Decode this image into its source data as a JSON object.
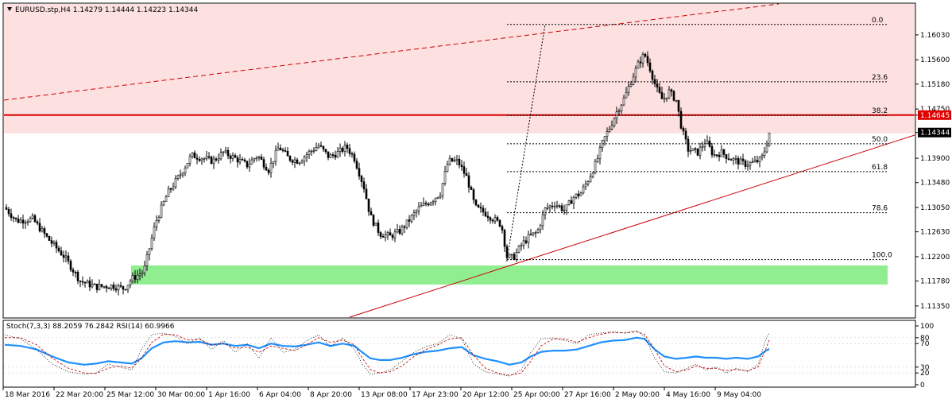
{
  "window": {
    "symbol_line": "EURUSD.stp,H4  1.14279 1.14444 1.14223 1.14344",
    "menu_icon": "triangle-down-icon"
  },
  "colors": {
    "background": "#ffffff",
    "resistance_zone": "#fde0e0",
    "support_zone": "#90ee90",
    "horizontal_line": "#e00000",
    "trend_line": "#cc0000",
    "candle": "#000000",
    "stoch_main": "#0b0b0b",
    "stoch_signal": "#c00000",
    "rsi": "#1e90ff"
  },
  "price_axis": {
    "labels": [
      "1.16030",
      "1.15600",
      "1.15180",
      "1.14750",
      "1.14645",
      "1.14344",
      "1.13900",
      "1.13480",
      "1.13050",
      "1.12630",
      "1.12200",
      "1.11780",
      "1.11350"
    ],
    "range": [
      1.1117,
      1.1655
    ],
    "horizontal_level": "1.14645",
    "current_price": "1.14344"
  },
  "time_axis": {
    "labels": [
      "18 Mar 2016",
      "22 Mar 20:00",
      "25 Mar 12:00",
      "30 Mar 00:00",
      "1 Apr 16:00",
      "6 Apr 04:00",
      "8 Apr 20:00",
      "13 Apr 08:00",
      "17 Apr 23:00",
      "20 Apr 12:00",
      "25 Apr 00:00",
      "27 Apr 16:00",
      "2 May 00:00",
      "4 May 16:00",
      "9 May 04:00"
    ]
  },
  "fibonacci": {
    "levels": [
      {
        "label": "0.0",
        "price": 1.1621
      },
      {
        "label": "23.6",
        "price": 1.1522
      },
      {
        "label": "38.2",
        "price": 1.1464
      },
      {
        "label": "50.0",
        "price": 1.1415
      },
      {
        "label": "61.8",
        "price": 1.1367
      },
      {
        "label": "78.6",
        "price": 1.1296
      },
      {
        "label": "100.0",
        "price": 1.1215
      }
    ]
  },
  "indicator": {
    "label": "Stoch(7,3,3) 88.2059 76.2842  RSI(14) 60.9966",
    "scale_labels": [
      "100",
      "80",
      "70",
      "30",
      "20",
      "0"
    ]
  },
  "chart_data": {
    "type": "candlestick",
    "title": "EURUSD.stp,H4  1.14279 1.14444 1.14223 1.14344",
    "ylim": [
      1.1117,
      1.1655
    ],
    "path": [
      [
        0,
        1.1305
      ],
      [
        15,
        1.1282
      ],
      [
        35,
        1.1285
      ],
      [
        55,
        1.125
      ],
      [
        75,
        1.122
      ],
      [
        95,
        1.1178
      ],
      [
        115,
        1.1168
      ],
      [
        135,
        1.117
      ],
      [
        150,
        1.1165
      ],
      [
        160,
        1.1182
      ],
      [
        175,
        1.1195
      ],
      [
        190,
        1.128
      ],
      [
        205,
        1.133
      ],
      [
        220,
        1.136
      ],
      [
        235,
        1.1395
      ],
      [
        250,
        1.139
      ],
      [
        262,
        1.1385
      ],
      [
        275,
        1.14
      ],
      [
        290,
        1.139
      ],
      [
        305,
        1.1378
      ],
      [
        318,
        1.1395
      ],
      [
        332,
        1.137
      ],
      [
        345,
        1.141
      ],
      [
        357,
        1.139
      ],
      [
        370,
        1.1385
      ],
      [
        383,
        1.14
      ],
      [
        395,
        1.1412
      ],
      [
        408,
        1.1392
      ],
      [
        420,
        1.14
      ],
      [
        430,
        1.141
      ],
      [
        440,
        1.139
      ],
      [
        452,
        1.134
      ],
      [
        460,
        1.129
      ],
      [
        472,
        1.126
      ],
      [
        485,
        1.1255
      ],
      [
        498,
        1.1265
      ],
      [
        510,
        1.1285
      ],
      [
        522,
        1.1305
      ],
      [
        535,
        1.1315
      ],
      [
        548,
        1.133
      ],
      [
        558,
        1.1385
      ],
      [
        570,
        1.1385
      ],
      [
        582,
        1.1355
      ],
      [
        592,
        1.1305
      ],
      [
        605,
        1.1295
      ],
      [
        615,
        1.1285
      ],
      [
        625,
        1.1275
      ],
      [
        632,
        1.122
      ],
      [
        640,
        1.1218
      ],
      [
        650,
        1.124
      ],
      [
        660,
        1.1255
      ],
      [
        670,
        1.1262
      ],
      [
        680,
        1.1302
      ],
      [
        692,
        1.1312
      ],
      [
        705,
        1.13
      ],
      [
        715,
        1.1322
      ],
      [
        725,
        1.133
      ],
      [
        735,
        1.1355
      ],
      [
        745,
        1.1385
      ],
      [
        753,
        1.142
      ],
      [
        762,
        1.1445
      ],
      [
        770,
        1.147
      ],
      [
        780,
        1.1495
      ],
      [
        790,
        1.153
      ],
      [
        798,
        1.1555
      ],
      [
        805,
        1.157
      ],
      [
        812,
        1.1545
      ],
      [
        820,
        1.151
      ],
      [
        828,
        1.149
      ],
      [
        836,
        1.1505
      ],
      [
        845,
        1.149
      ],
      [
        852,
        1.144
      ],
      [
        860,
        1.1405
      ],
      [
        872,
        1.14
      ],
      [
        882,
        1.142
      ],
      [
        892,
        1.1395
      ],
      [
        902,
        1.14
      ],
      [
        912,
        1.139
      ],
      [
        922,
        1.1385
      ],
      [
        932,
        1.138
      ],
      [
        942,
        1.1382
      ],
      [
        952,
        1.1388
      ],
      [
        958,
        1.141
      ],
      [
        962,
        1.1434
      ]
    ],
    "stoch_main": [
      [
        0,
        85
      ],
      [
        20,
        78
      ],
      [
        40,
        60
      ],
      [
        60,
        35
      ],
      [
        80,
        22
      ],
      [
        100,
        18
      ],
      [
        115,
        20
      ],
      [
        130,
        35
      ],
      [
        145,
        30
      ],
      [
        160,
        25
      ],
      [
        172,
        60
      ],
      [
        185,
        85
      ],
      [
        200,
        88
      ],
      [
        215,
        82
      ],
      [
        230,
        70
      ],
      [
        245,
        80
      ],
      [
        260,
        60
      ],
      [
        275,
        75
      ],
      [
        290,
        55
      ],
      [
        305,
        70
      ],
      [
        320,
        45
      ],
      [
        335,
        80
      ],
      [
        350,
        55
      ],
      [
        365,
        60
      ],
      [
        380,
        75
      ],
      [
        395,
        85
      ],
      [
        410,
        65
      ],
      [
        425,
        80
      ],
      [
        440,
        60
      ],
      [
        450,
        35
      ],
      [
        460,
        18
      ],
      [
        472,
        20
      ],
      [
        485,
        25
      ],
      [
        500,
        40
      ],
      [
        515,
        55
      ],
      [
        530,
        65
      ],
      [
        545,
        70
      ],
      [
        560,
        85
      ],
      [
        575,
        78
      ],
      [
        590,
        35
      ],
      [
        605,
        22
      ],
      [
        620,
        18
      ],
      [
        635,
        15
      ],
      [
        650,
        25
      ],
      [
        662,
        55
      ],
      [
        675,
        78
      ],
      [
        690,
        80
      ],
      [
        705,
        75
      ],
      [
        720,
        70
      ],
      [
        735,
        85
      ],
      [
        750,
        88
      ],
      [
        765,
        90
      ],
      [
        780,
        88
      ],
      [
        795,
        92
      ],
      [
        805,
        82
      ],
      [
        818,
        45
      ],
      [
        830,
        22
      ],
      [
        845,
        20
      ],
      [
        858,
        28
      ],
      [
        870,
        35
      ],
      [
        882,
        25
      ],
      [
        895,
        30
      ],
      [
        908,
        20
      ],
      [
        920,
        28
      ],
      [
        935,
        22
      ],
      [
        948,
        35
      ],
      [
        958,
        78
      ],
      [
        962,
        88
      ]
    ],
    "stoch_signal": [
      [
        0,
        80
      ],
      [
        20,
        80
      ],
      [
        40,
        68
      ],
      [
        60,
        45
      ],
      [
        80,
        28
      ],
      [
        100,
        20
      ],
      [
        115,
        19
      ],
      [
        130,
        28
      ],
      [
        145,
        32
      ],
      [
        160,
        28
      ],
      [
        172,
        45
      ],
      [
        185,
        72
      ],
      [
        200,
        86
      ],
      [
        215,
        85
      ],
      [
        230,
        76
      ],
      [
        245,
        77
      ],
      [
        260,
        68
      ],
      [
        275,
        70
      ],
      [
        290,
        62
      ],
      [
        305,
        64
      ],
      [
        320,
        55
      ],
      [
        335,
        66
      ],
      [
        350,
        62
      ],
      [
        365,
        58
      ],
      [
        380,
        68
      ],
      [
        395,
        80
      ],
      [
        410,
        72
      ],
      [
        425,
        76
      ],
      [
        440,
        68
      ],
      [
        450,
        45
      ],
      [
        460,
        26
      ],
      [
        472,
        20
      ],
      [
        485,
        22
      ],
      [
        500,
        32
      ],
      [
        515,
        48
      ],
      [
        530,
        60
      ],
      [
        545,
        68
      ],
      [
        560,
        78
      ],
      [
        575,
        80
      ],
      [
        590,
        50
      ],
      [
        605,
        28
      ],
      [
        620,
        20
      ],
      [
        635,
        16
      ],
      [
        650,
        20
      ],
      [
        662,
        40
      ],
      [
        675,
        66
      ],
      [
        690,
        78
      ],
      [
        705,
        78
      ],
      [
        720,
        72
      ],
      [
        735,
        80
      ],
      [
        750,
        86
      ],
      [
        765,
        89
      ],
      [
        780,
        88
      ],
      [
        795,
        90
      ],
      [
        805,
        86
      ],
      [
        818,
        60
      ],
      [
        830,
        32
      ],
      [
        845,
        22
      ],
      [
        858,
        25
      ],
      [
        870,
        32
      ],
      [
        882,
        28
      ],
      [
        895,
        28
      ],
      [
        908,
        24
      ],
      [
        920,
        26
      ],
      [
        935,
        24
      ],
      [
        948,
        30
      ],
      [
        958,
        62
      ],
      [
        962,
        76
      ]
    ],
    "rsi": [
      [
        0,
        68
      ],
      [
        20,
        66
      ],
      [
        40,
        60
      ],
      [
        60,
        48
      ],
      [
        80,
        38
      ],
      [
        100,
        34
      ],
      [
        115,
        36
      ],
      [
        130,
        40
      ],
      [
        145,
        38
      ],
      [
        160,
        36
      ],
      [
        172,
        45
      ],
      [
        185,
        62
      ],
      [
        200,
        72
      ],
      [
        215,
        74
      ],
      [
        230,
        72
      ],
      [
        245,
        73
      ],
      [
        260,
        68
      ],
      [
        275,
        70
      ],
      [
        290,
        66
      ],
      [
        305,
        68
      ],
      [
        320,
        62
      ],
      [
        335,
        70
      ],
      [
        350,
        66
      ],
      [
        365,
        65
      ],
      [
        380,
        68
      ],
      [
        395,
        72
      ],
      [
        410,
        66
      ],
      [
        425,
        70
      ],
      [
        440,
        66
      ],
      [
        450,
        55
      ],
      [
        460,
        45
      ],
      [
        472,
        42
      ],
      [
        485,
        42
      ],
      [
        500,
        46
      ],
      [
        515,
        52
      ],
      [
        530,
        56
      ],
      [
        545,
        58
      ],
      [
        560,
        62
      ],
      [
        575,
        64
      ],
      [
        590,
        50
      ],
      [
        605,
        44
      ],
      [
        620,
        40
      ],
      [
        635,
        34
      ],
      [
        650,
        38
      ],
      [
        662,
        48
      ],
      [
        675,
        56
      ],
      [
        690,
        58
      ],
      [
        705,
        58
      ],
      [
        720,
        60
      ],
      [
        735,
        66
      ],
      [
        750,
        72
      ],
      [
        765,
        75
      ],
      [
        780,
        76
      ],
      [
        795,
        80
      ],
      [
        805,
        78
      ],
      [
        818,
        60
      ],
      [
        830,
        48
      ],
      [
        845,
        44
      ],
      [
        858,
        46
      ],
      [
        870,
        48
      ],
      [
        882,
        46
      ],
      [
        895,
        46
      ],
      [
        908,
        44
      ],
      [
        920,
        46
      ],
      [
        935,
        44
      ],
      [
        948,
        48
      ],
      [
        958,
        58
      ],
      [
        962,
        61
      ]
    ]
  }
}
